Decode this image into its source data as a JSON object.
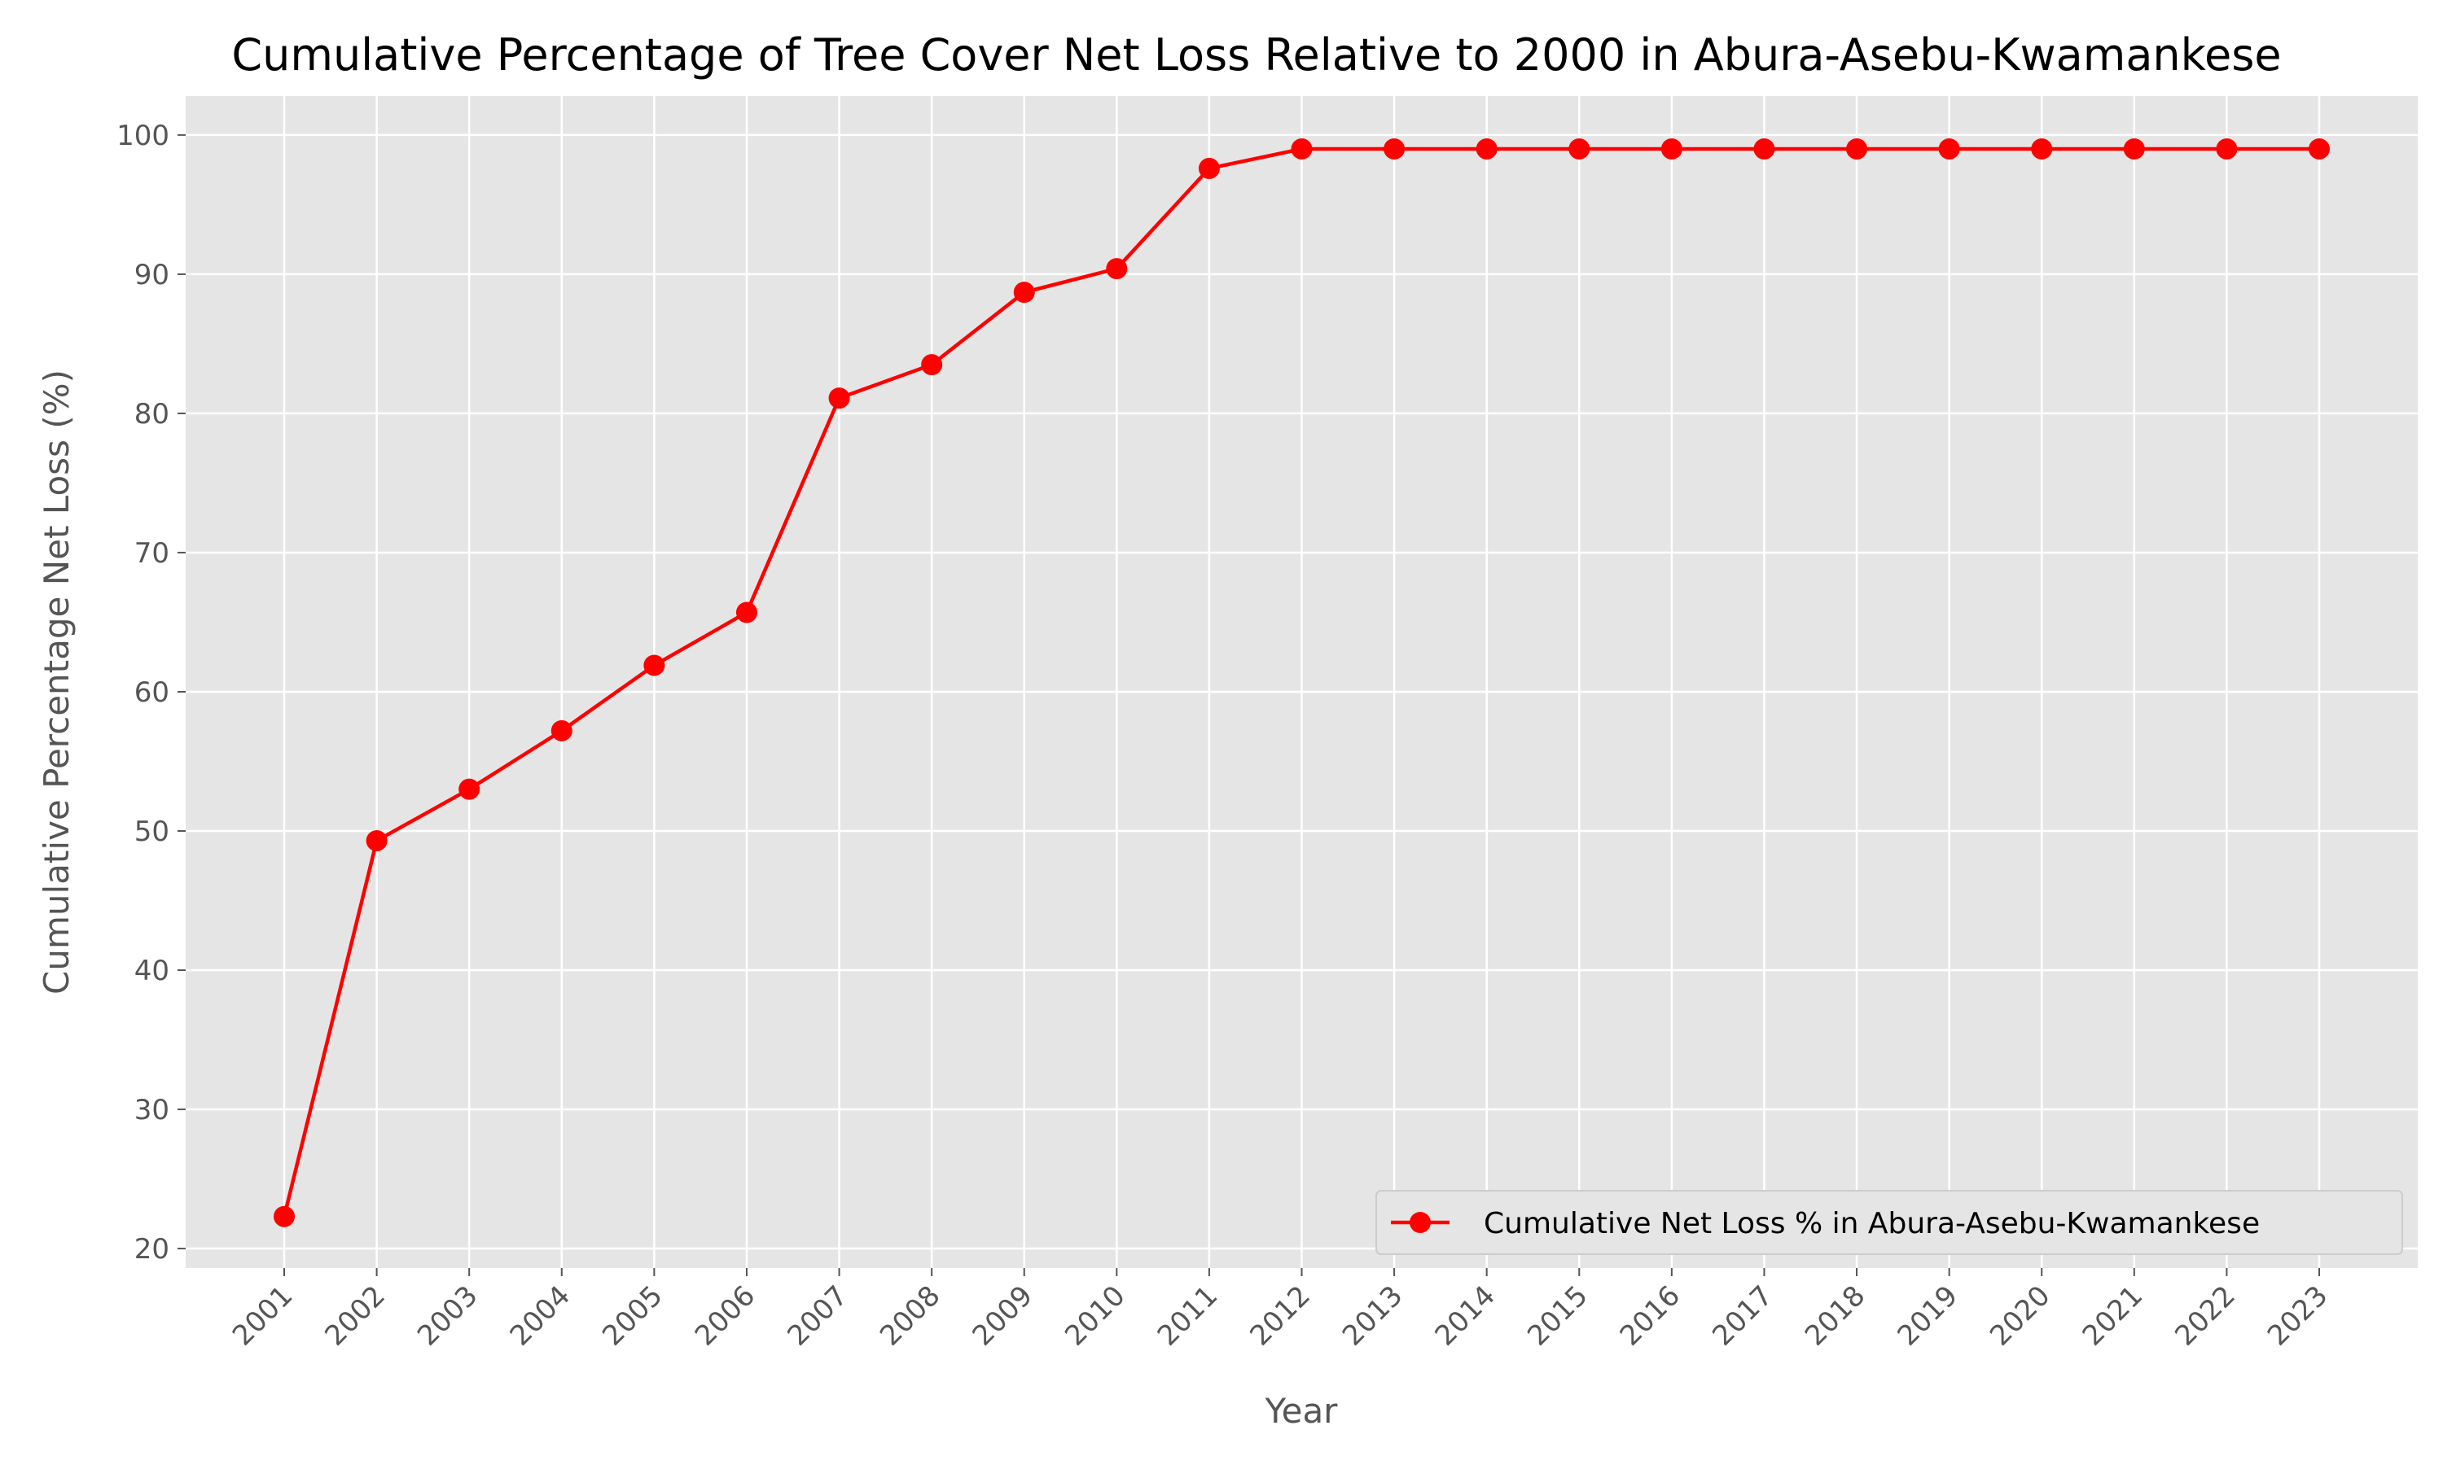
{
  "chart_data": {
    "type": "line",
    "title": "Cumulative Percentage of Tree Cover Net Loss Relative to 2000 in Abura-Asebu-Kwamankese",
    "xlabel": "Year",
    "ylabel": "Cumulative Percentage Net Loss (%)",
    "x": [
      "2001",
      "2002",
      "2003",
      "2004",
      "2005",
      "2006",
      "2007",
      "2008",
      "2009",
      "2010",
      "2011",
      "2012",
      "2013",
      "2014",
      "2015",
      "2016",
      "2017",
      "2018",
      "2019",
      "2020",
      "2021",
      "2022",
      "2023"
    ],
    "series": [
      {
        "name": "Cumulative Net Loss % in Abura-Asebu-Kwamankese",
        "color": "#ff0000",
        "marker": "circle",
        "values": [
          22.3,
          49.3,
          53.0,
          57.2,
          61.9,
          65.7,
          81.1,
          83.5,
          88.7,
          90.4,
          97.6,
          99.0,
          99.0,
          99.0,
          99.0,
          99.0,
          99.0,
          99.0,
          99.0,
          99.0,
          99.0,
          99.0,
          99.0
        ]
      }
    ],
    "yticks": [
      20,
      30,
      40,
      50,
      60,
      70,
      80,
      90,
      100
    ],
    "ylim": [
      18.6,
      102.8
    ],
    "grid": true,
    "legend_position": "lower-right",
    "background": "#e5e5e5",
    "grid_color": "#ffffff"
  }
}
